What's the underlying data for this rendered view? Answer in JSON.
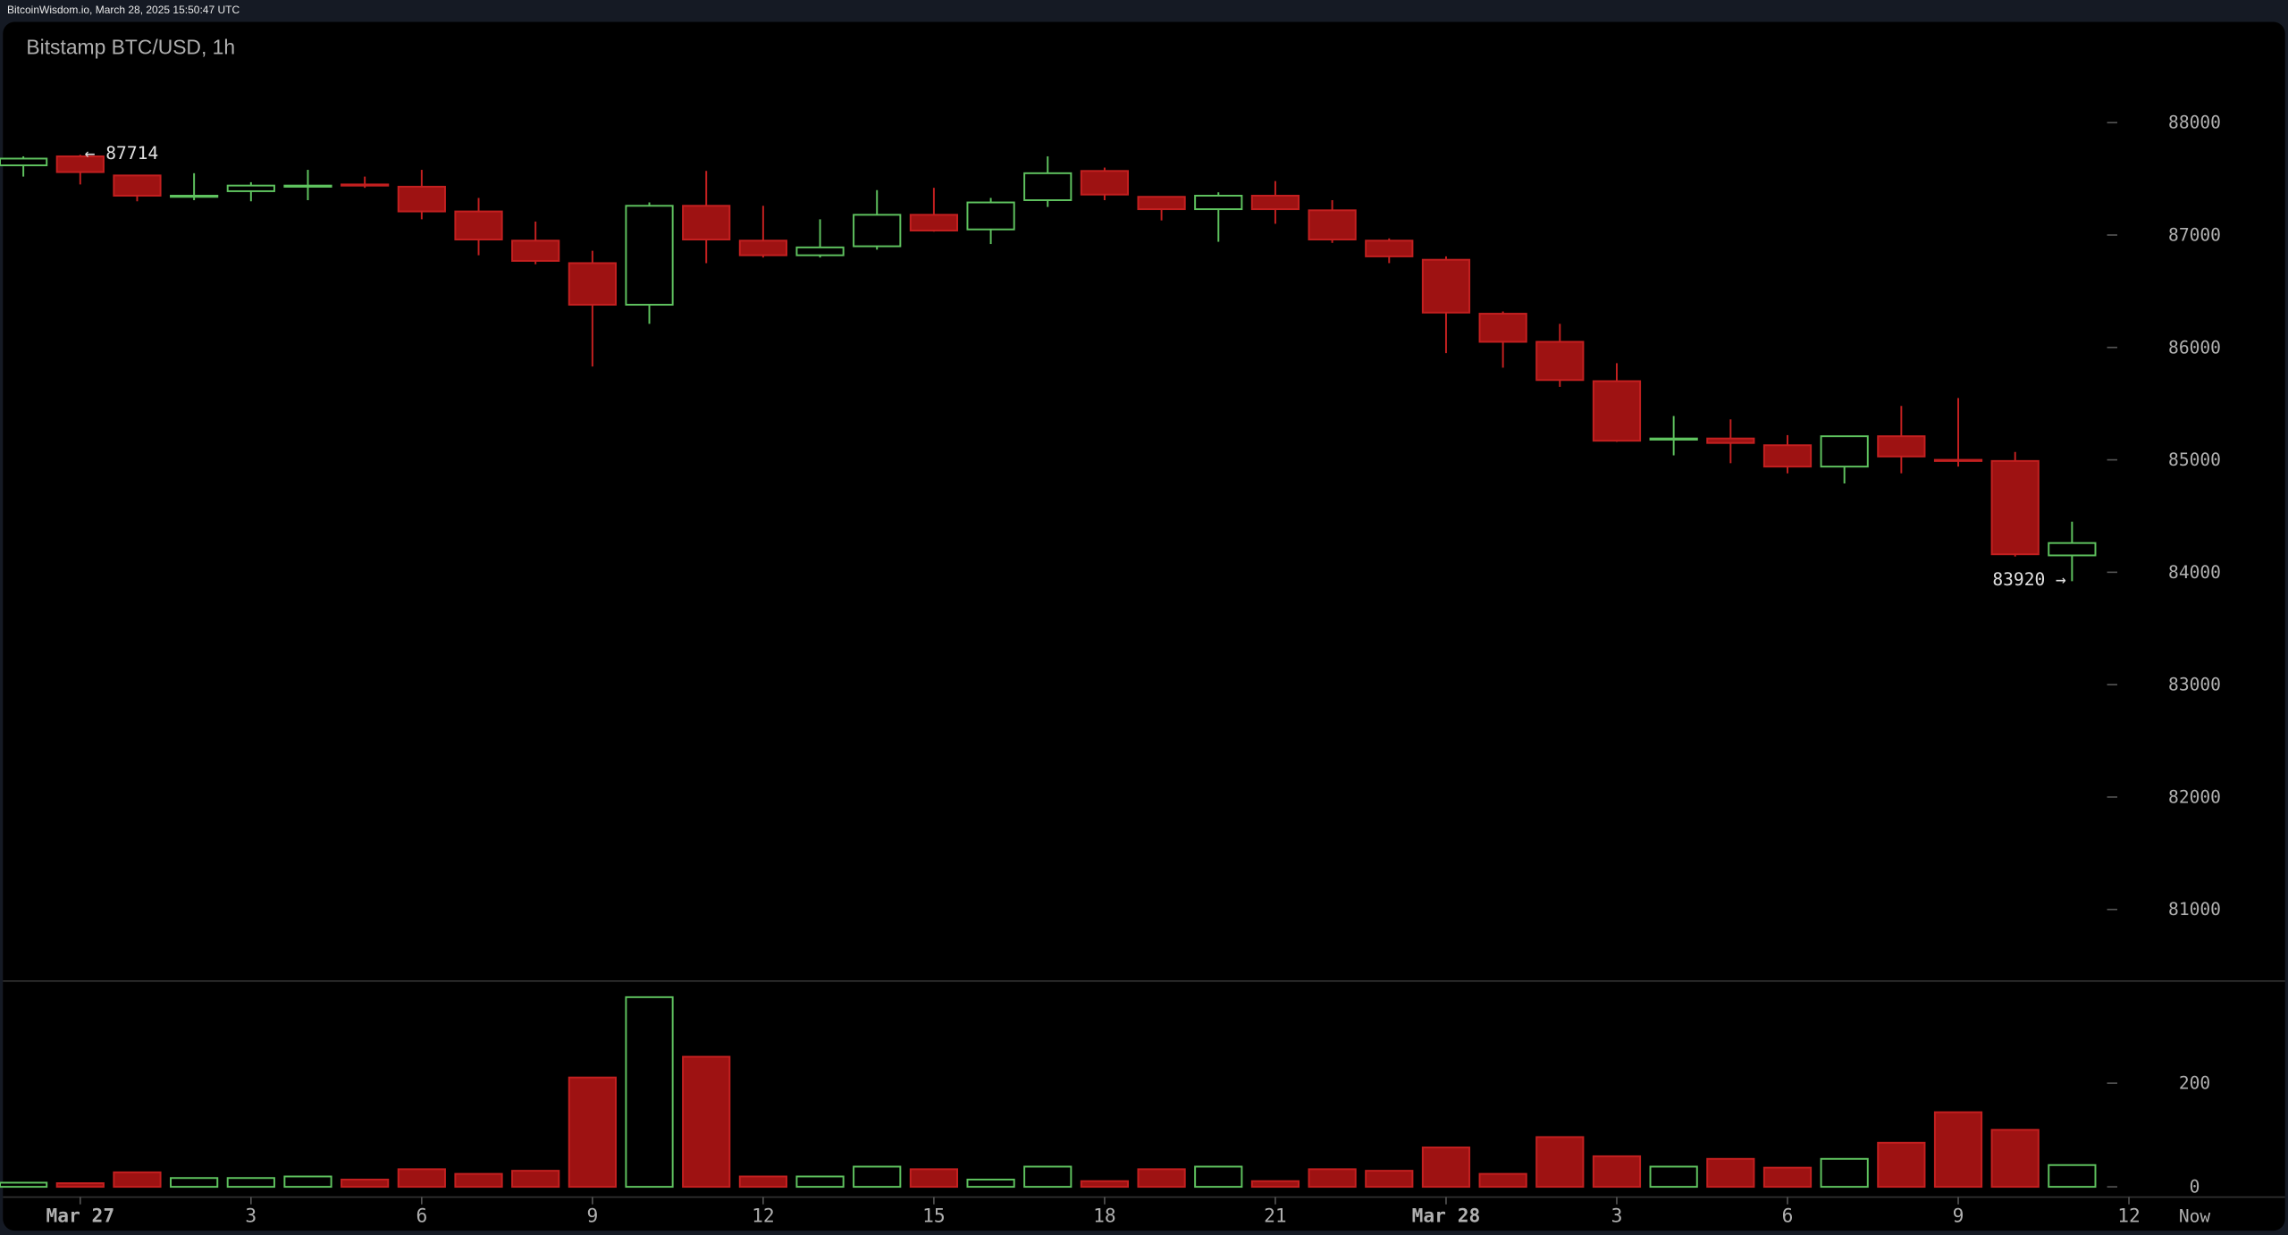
{
  "header": {
    "source_line": "BitcoinWisdom.io, March 28, 2025 15:50:47 UTC"
  },
  "colors": {
    "up": "#5fc35f",
    "down_fill": "#9e1212",
    "down_stroke": "#c42020",
    "background": "#000000",
    "frame": "#151a24",
    "text": "#b0b0b0"
  },
  "chart_data": {
    "type": "candlestick",
    "title": "Bitstamp BTC/USD, 1h",
    "ylim": [
      80300,
      88500
    ],
    "y_ticks": [
      81000,
      82000,
      83000,
      84000,
      85000,
      86000,
      87000,
      88000
    ],
    "volume_ticks": [
      0,
      200
    ],
    "x_tick_labels": [
      {
        "hour": 0,
        "label": "Mar 27"
      },
      {
        "hour": 3,
        "label": "3"
      },
      {
        "hour": 6,
        "label": "6"
      },
      {
        "hour": 9,
        "label": "9"
      },
      {
        "hour": 12,
        "label": "12"
      },
      {
        "hour": 15,
        "label": "15"
      },
      {
        "hour": 18,
        "label": "18"
      },
      {
        "hour": 21,
        "label": "21"
      },
      {
        "hour": 24,
        "label": "Mar 28"
      },
      {
        "hour": 27,
        "label": "3"
      },
      {
        "hour": 30,
        "label": "6"
      },
      {
        "hour": 33,
        "label": "9"
      },
      {
        "hour": 36,
        "label": "12"
      }
    ],
    "now_label": "Now",
    "annotations": {
      "high": {
        "text": "← 87714",
        "value": 87714
      },
      "low": {
        "text": "83920 →",
        "value": 83920
      }
    },
    "candles": [
      {
        "o": 87620,
        "h": 87700,
        "l": 87520,
        "c": 87680,
        "v": 8
      },
      {
        "o": 87700,
        "h": 87714,
        "l": 87450,
        "c": 87560,
        "v": 7
      },
      {
        "o": 87530,
        "h": 87530,
        "l": 87300,
        "c": 87350,
        "v": 28
      },
      {
        "o": 87340,
        "h": 87550,
        "l": 87310,
        "c": 87350,
        "v": 17
      },
      {
        "o": 87390,
        "h": 87470,
        "l": 87300,
        "c": 87440,
        "v": 17
      },
      {
        "o": 87430,
        "h": 87580,
        "l": 87310,
        "c": 87440,
        "v": 20
      },
      {
        "o": 87450,
        "h": 87520,
        "l": 87420,
        "c": 87440,
        "v": 14
      },
      {
        "o": 87430,
        "h": 87580,
        "l": 87140,
        "c": 87210,
        "v": 34
      },
      {
        "o": 87210,
        "h": 87330,
        "l": 86820,
        "c": 86960,
        "v": 25
      },
      {
        "o": 86950,
        "h": 87120,
        "l": 86740,
        "c": 86770,
        "v": 31
      },
      {
        "o": 86750,
        "h": 86860,
        "l": 85830,
        "c": 86380,
        "v": 211
      },
      {
        "o": 86380,
        "h": 87290,
        "l": 86210,
        "c": 87260,
        "v": 366
      },
      {
        "o": 87260,
        "h": 87570,
        "l": 86750,
        "c": 86960,
        "v": 251
      },
      {
        "o": 86950,
        "h": 87260,
        "l": 86800,
        "c": 86820,
        "v": 20
      },
      {
        "o": 86820,
        "h": 87140,
        "l": 86800,
        "c": 86890,
        "v": 20
      },
      {
        "o": 86900,
        "h": 87400,
        "l": 86870,
        "c": 87180,
        "v": 39
      },
      {
        "o": 87180,
        "h": 87420,
        "l": 87030,
        "c": 87040,
        "v": 34
      },
      {
        "o": 87050,
        "h": 87330,
        "l": 86920,
        "c": 87290,
        "v": 14
      },
      {
        "o": 87310,
        "h": 87700,
        "l": 87250,
        "c": 87550,
        "v": 39
      },
      {
        "o": 87570,
        "h": 87600,
        "l": 87310,
        "c": 87360,
        "v": 11
      },
      {
        "o": 87340,
        "h": 87340,
        "l": 87130,
        "c": 87230,
        "v": 34
      },
      {
        "o": 87230,
        "h": 87380,
        "l": 86940,
        "c": 87350,
        "v": 39
      },
      {
        "o": 87350,
        "h": 87480,
        "l": 87100,
        "c": 87230,
        "v": 11
      },
      {
        "o": 87220,
        "h": 87310,
        "l": 86930,
        "c": 86960,
        "v": 34
      },
      {
        "o": 86950,
        "h": 86970,
        "l": 86750,
        "c": 86810,
        "v": 31
      },
      {
        "o": 86780,
        "h": 86810,
        "l": 85950,
        "c": 86310,
        "v": 76
      },
      {
        "o": 86300,
        "h": 86320,
        "l": 85820,
        "c": 86050,
        "v": 25
      },
      {
        "o": 86050,
        "h": 86210,
        "l": 85650,
        "c": 85710,
        "v": 96
      },
      {
        "o": 85700,
        "h": 85860,
        "l": 85160,
        "c": 85170,
        "v": 59
      },
      {
        "o": 85180,
        "h": 85390,
        "l": 85040,
        "c": 85190,
        "v": 39
      },
      {
        "o": 85190,
        "h": 85360,
        "l": 84970,
        "c": 85150,
        "v": 54
      },
      {
        "o": 85130,
        "h": 85220,
        "l": 84880,
        "c": 84940,
        "v": 37
      },
      {
        "o": 84940,
        "h": 85210,
        "l": 84790,
        "c": 85210,
        "v": 54
      },
      {
        "o": 85210,
        "h": 85480,
        "l": 84880,
        "c": 85030,
        "v": 85
      },
      {
        "o": 85000,
        "h": 85550,
        "l": 84940,
        "c": 84990,
        "v": 144
      },
      {
        "o": 84990,
        "h": 85070,
        "l": 84140,
        "c": 84160,
        "v": 110
      },
      {
        "o": 84150,
        "h": 84450,
        "l": 83920,
        "c": 84260,
        "v": 42
      }
    ]
  }
}
